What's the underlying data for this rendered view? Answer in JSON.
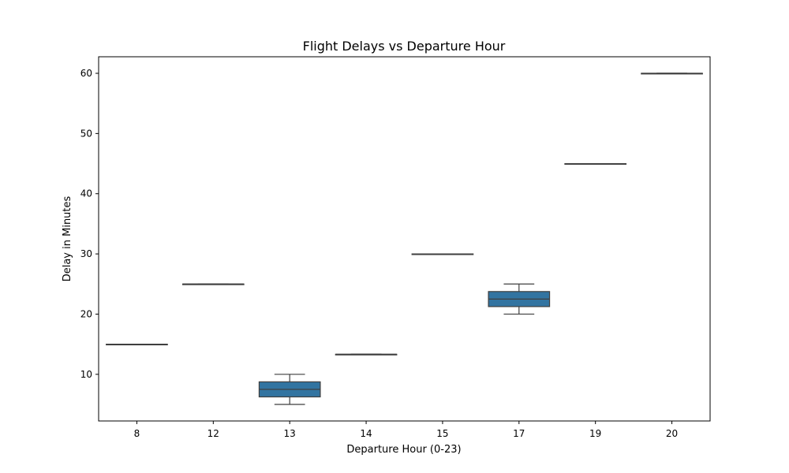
{
  "chart_data": {
    "type": "box",
    "title": "Flight Delays vs Departure Hour",
    "xlabel": "Departure Hour (0-23)",
    "ylabel": "Delay in Minutes",
    "categories": [
      "8",
      "12",
      "13",
      "14",
      "15",
      "17",
      "19",
      "20"
    ],
    "boxes": [
      {
        "category": "8",
        "min": 15,
        "q1": 15,
        "median": 15,
        "q3": 15,
        "max": 15
      },
      {
        "category": "12",
        "min": 25,
        "q1": 25,
        "median": 25,
        "q3": 25,
        "max": 25
      },
      {
        "category": "13",
        "min": 5,
        "q1": 6.25,
        "median": 7.5,
        "q3": 8.75,
        "max": 10
      },
      {
        "category": "14",
        "min": 13.33,
        "q1": 13.33,
        "median": 13.33,
        "q3": 13.33,
        "max": 13.33
      },
      {
        "category": "15",
        "min": 30,
        "q1": 30,
        "median": 30,
        "q3": 30,
        "max": 30
      },
      {
        "category": "17",
        "min": 20,
        "q1": 21.25,
        "median": 22.5,
        "q3": 23.75,
        "max": 25
      },
      {
        "category": "19",
        "min": 45,
        "q1": 45,
        "median": 45,
        "q3": 45,
        "max": 45
      },
      {
        "category": "20",
        "min": 60,
        "q1": 60,
        "median": 60,
        "q3": 60,
        "max": 60
      }
    ],
    "yticks": [
      10,
      20,
      30,
      40,
      50,
      60
    ],
    "ylim": [
      2.25,
      62.75
    ],
    "grid": false,
    "colors": {
      "box_fill": "#3274a1",
      "line": "#3f3f3f"
    }
  }
}
